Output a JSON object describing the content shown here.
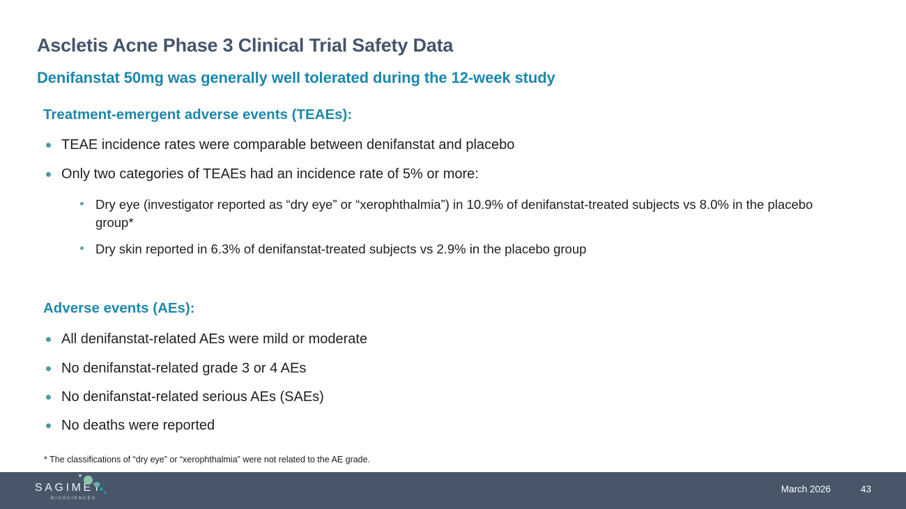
{
  "slide": {
    "title": "Ascletis Acne Phase 3 Clinical Trial Safety Data",
    "subtitle": "Denifanstat 50mg was generally well tolerated during the 12-week study",
    "sections": [
      {
        "heading": "Treatment-emergent adverse events (TEAEs):",
        "bullets": [
          {
            "level": 1,
            "text": "TEAE incidence rates were comparable between denifanstat and placebo"
          },
          {
            "level": 1,
            "text": "Only two categories of TEAEs had an incidence rate of 5% or more:"
          },
          {
            "level": 2,
            "text": "Dry eye (investigator reported as “dry eye” or “xerophthalmia”) in 10.9% of denifanstat-treated subjects vs 8.0% in the placebo group*"
          },
          {
            "level": 2,
            "text": "Dry skin reported in 6.3% of denifanstat-treated subjects vs 2.9% in the placebo group"
          }
        ]
      },
      {
        "heading": "Adverse events (AEs):",
        "bullets": [
          {
            "level": 1,
            "text": "All denifanstat-related AEs were mild or moderate"
          },
          {
            "level": 1,
            "text": "No denifanstat-related grade 3 or 4 AEs"
          },
          {
            "level": 1,
            "text": "No denifanstat-related serious AEs (SAEs)"
          },
          {
            "level": 1,
            "text": "No deaths were reported"
          }
        ]
      }
    ],
    "footnote": "* The classifications of “dry eye” or “xerophthalmia” were not related to the AE grade."
  },
  "footer": {
    "logo": {
      "name": "SAGIMET",
      "tagline": "BIOSCIENCES"
    },
    "date": "March 2026",
    "page_number": "43"
  },
  "colors": {
    "title": "#44546A",
    "accent_teal": "#1B87AE",
    "body_text": "#1E1E1E",
    "bullet_dot": "#4E999E",
    "footer_background": "#475669",
    "logo_dot_sage": "#8CC4AD",
    "logo_dot_teal": "#2E96B0"
  }
}
